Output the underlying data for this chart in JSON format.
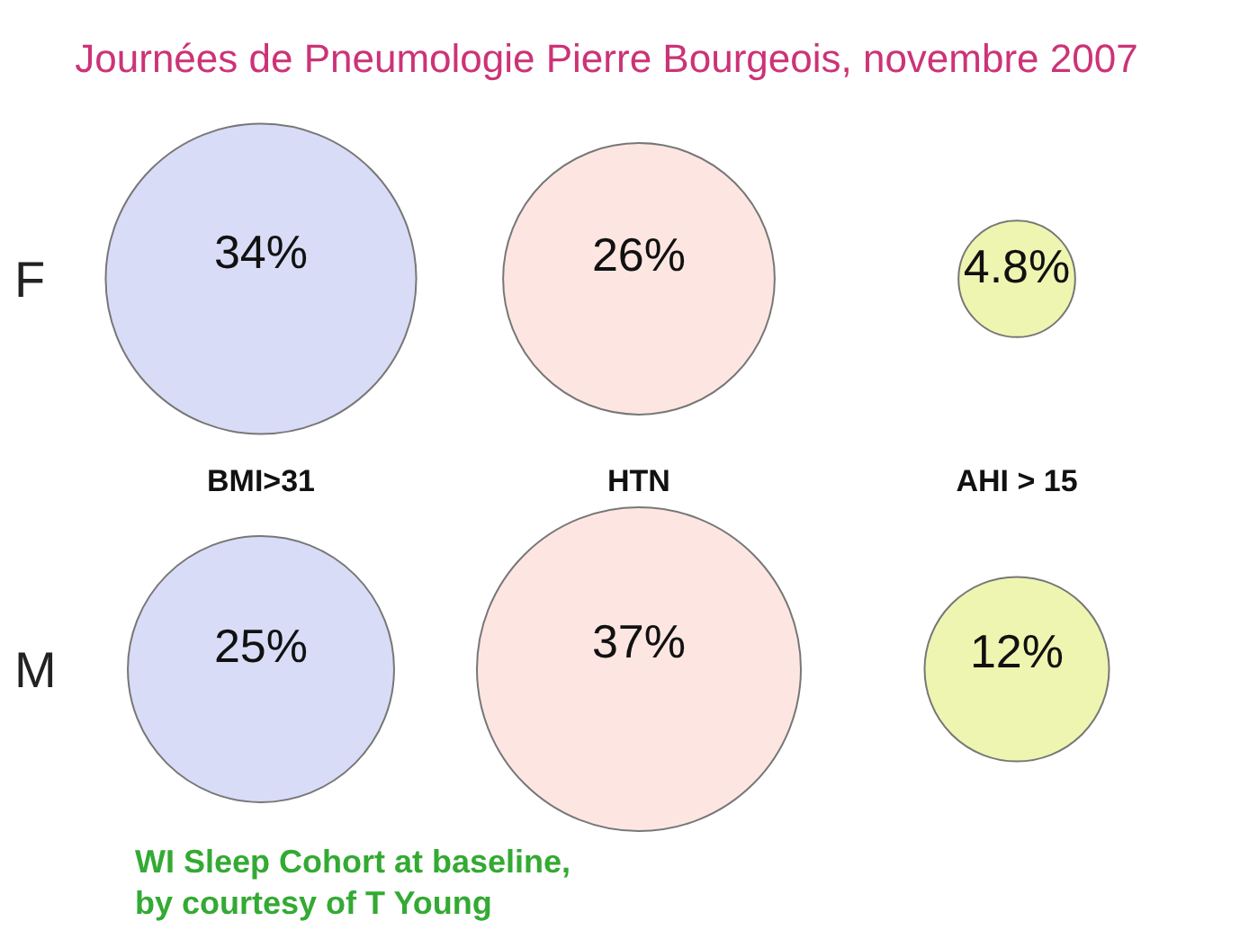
{
  "chart_data": {
    "type": "other",
    "title": "Journées de Pneumologie Pierre Bourgeois, novembre 2007",
    "categories": [
      "BMI>31",
      "HTN",
      "AHI > 15"
    ],
    "series": [
      {
        "name": "F",
        "colors": [
          "#d9dcf7",
          "#fde6e2",
          "#eef5b0"
        ],
        "values": [
          34,
          26,
          4.8
        ],
        "value_labels": [
          "34%",
          "26%",
          "4.8%"
        ]
      },
      {
        "name": "M",
        "colors": [
          "#d9dcf7",
          "#fde6e2",
          "#eef5b0"
        ],
        "values": [
          25,
          37,
          12
        ],
        "value_labels": [
          "25%",
          "37%",
          "12%"
        ]
      }
    ],
    "annotations": [
      "WI Sleep Cohort at baseline,",
      "by courtesy of T Young"
    ]
  }
}
